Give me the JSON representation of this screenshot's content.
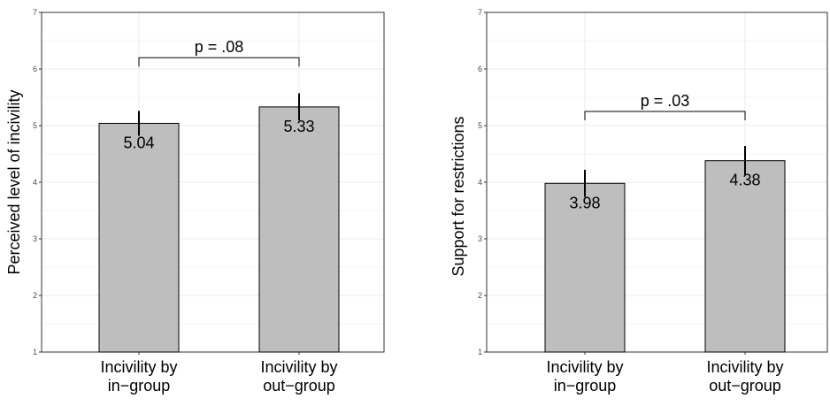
{
  "chart_data": [
    {
      "type": "bar",
      "ylabel": "Perceived level of incivility",
      "ylim": [
        1,
        7
      ],
      "yticks": [
        "1",
        "2",
        "3",
        "4",
        "5",
        "6",
        "7"
      ],
      "categories": [
        [
          "Incivility by",
          "in−group"
        ],
        [
          "Incivility by",
          "out−group"
        ]
      ],
      "values": [
        5.04,
        5.33
      ],
      "value_labels": [
        "5.04",
        "5.33"
      ],
      "error": [
        [
          4.82,
          5.26
        ],
        [
          5.09,
          5.57
        ]
      ],
      "bracket_y": 6.2,
      "annotation": "p = .08",
      "bar_color": "#bebebe",
      "grid": true
    },
    {
      "type": "bar",
      "ylabel": "Support for restrictions",
      "ylim": [
        1,
        7
      ],
      "yticks": [
        "1",
        "2",
        "3",
        "4",
        "5",
        "6",
        "7"
      ],
      "categories": [
        [
          "Incivility by",
          "in−group"
        ],
        [
          "Incivility by",
          "out−group"
        ]
      ],
      "values": [
        3.98,
        4.38
      ],
      "value_labels": [
        "3.98",
        "4.38"
      ],
      "error": [
        [
          3.74,
          4.22
        ],
        [
          4.12,
          4.64
        ]
      ],
      "bracket_y": 5.25,
      "annotation": "p = .03",
      "bar_color": "#bebebe",
      "grid": true
    }
  ]
}
